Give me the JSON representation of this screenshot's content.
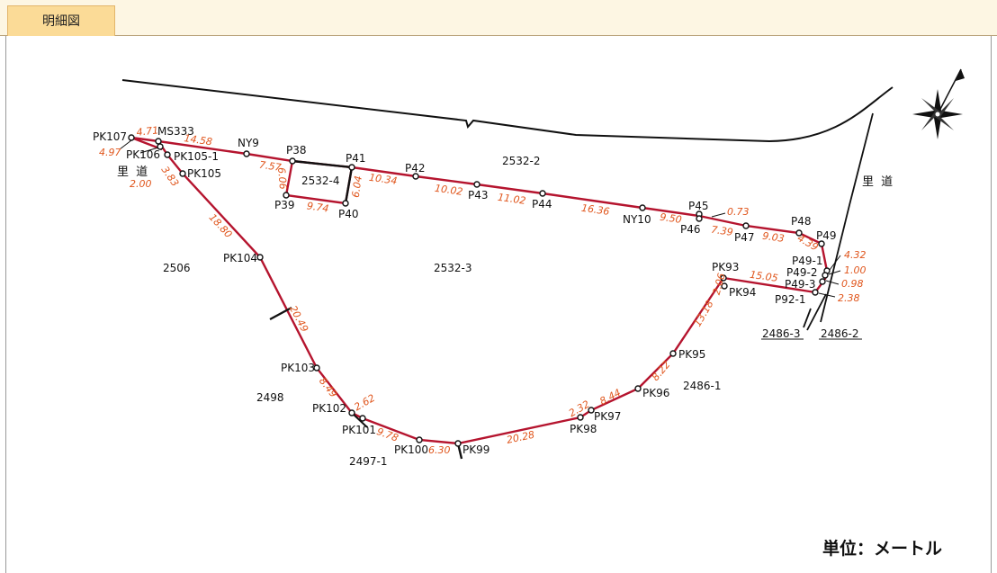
{
  "tab": {
    "label": "明細図"
  },
  "unit_label": "単位：メートル",
  "colors": {
    "boundary": "#b5142e",
    "dimension": "#e0561d",
    "road": "#111111"
  },
  "points": [
    {
      "id": "PK107",
      "label": "PK107"
    },
    {
      "id": "MS333",
      "label": "MS333"
    },
    {
      "id": "PK106",
      "label": "PK106"
    },
    {
      "id": "PK105-1",
      "label": "PK105-1"
    },
    {
      "id": "PK105",
      "label": "PK105"
    },
    {
      "id": "NY9",
      "label": "NY9"
    },
    {
      "id": "P38",
      "label": "P38"
    },
    {
      "id": "P39",
      "label": "P39"
    },
    {
      "id": "P40",
      "label": "P40"
    },
    {
      "id": "P41",
      "label": "P41"
    },
    {
      "id": "P42",
      "label": "P42"
    },
    {
      "id": "P43",
      "label": "P43"
    },
    {
      "id": "P44",
      "label": "P44"
    },
    {
      "id": "NY10",
      "label": "NY10"
    },
    {
      "id": "P45",
      "label": "P45"
    },
    {
      "id": "P46",
      "label": "P46"
    },
    {
      "id": "P47",
      "label": "P47"
    },
    {
      "id": "P48",
      "label": "P48"
    },
    {
      "id": "P49",
      "label": "P49"
    },
    {
      "id": "P49-1",
      "label": "P49-1"
    },
    {
      "id": "P49-2",
      "label": "P49-2"
    },
    {
      "id": "P49-3",
      "label": "P49-3"
    },
    {
      "id": "P92-1",
      "label": "P92-1"
    },
    {
      "id": "PK93",
      "label": "PK93"
    },
    {
      "id": "PK94",
      "label": "PK94"
    },
    {
      "id": "PK95",
      "label": "PK95"
    },
    {
      "id": "PK96",
      "label": "PK96"
    },
    {
      "id": "PK97",
      "label": "PK97"
    },
    {
      "id": "PK98",
      "label": "PK98"
    },
    {
      "id": "PK99",
      "label": "PK99"
    },
    {
      "id": "PK100",
      "label": "PK100"
    },
    {
      "id": "PK101",
      "label": "PK101"
    },
    {
      "id": "PK102",
      "label": "PK102"
    },
    {
      "id": "PK103",
      "label": "PK103"
    },
    {
      "id": "PK104",
      "label": "PK104"
    }
  ],
  "dimensions": [
    "4.71",
    "4.97",
    "14.58",
    "2.00",
    "3.83",
    "7.57",
    "6.06",
    "9.74",
    "6.04",
    "10.34",
    "10.02",
    "11.02",
    "16.36",
    "0.73",
    "9.50",
    "7.39",
    "9.03",
    "4.39",
    "4.32",
    "1.00",
    "0.98",
    "2.38",
    "15.05",
    "2.06",
    "13.18",
    "8.22",
    "8.44",
    "2.32",
    "20.28",
    "6.30",
    "9.78",
    "2.62",
    "8.49",
    "20.49",
    "18.80"
  ],
  "parcels": [
    "2532-2",
    "2532-4",
    "2532-3",
    "2506",
    "2498",
    "2497-1",
    "2486-1",
    "2486-3",
    "2486-2"
  ],
  "roads": [
    "里 道",
    "里 道"
  ]
}
